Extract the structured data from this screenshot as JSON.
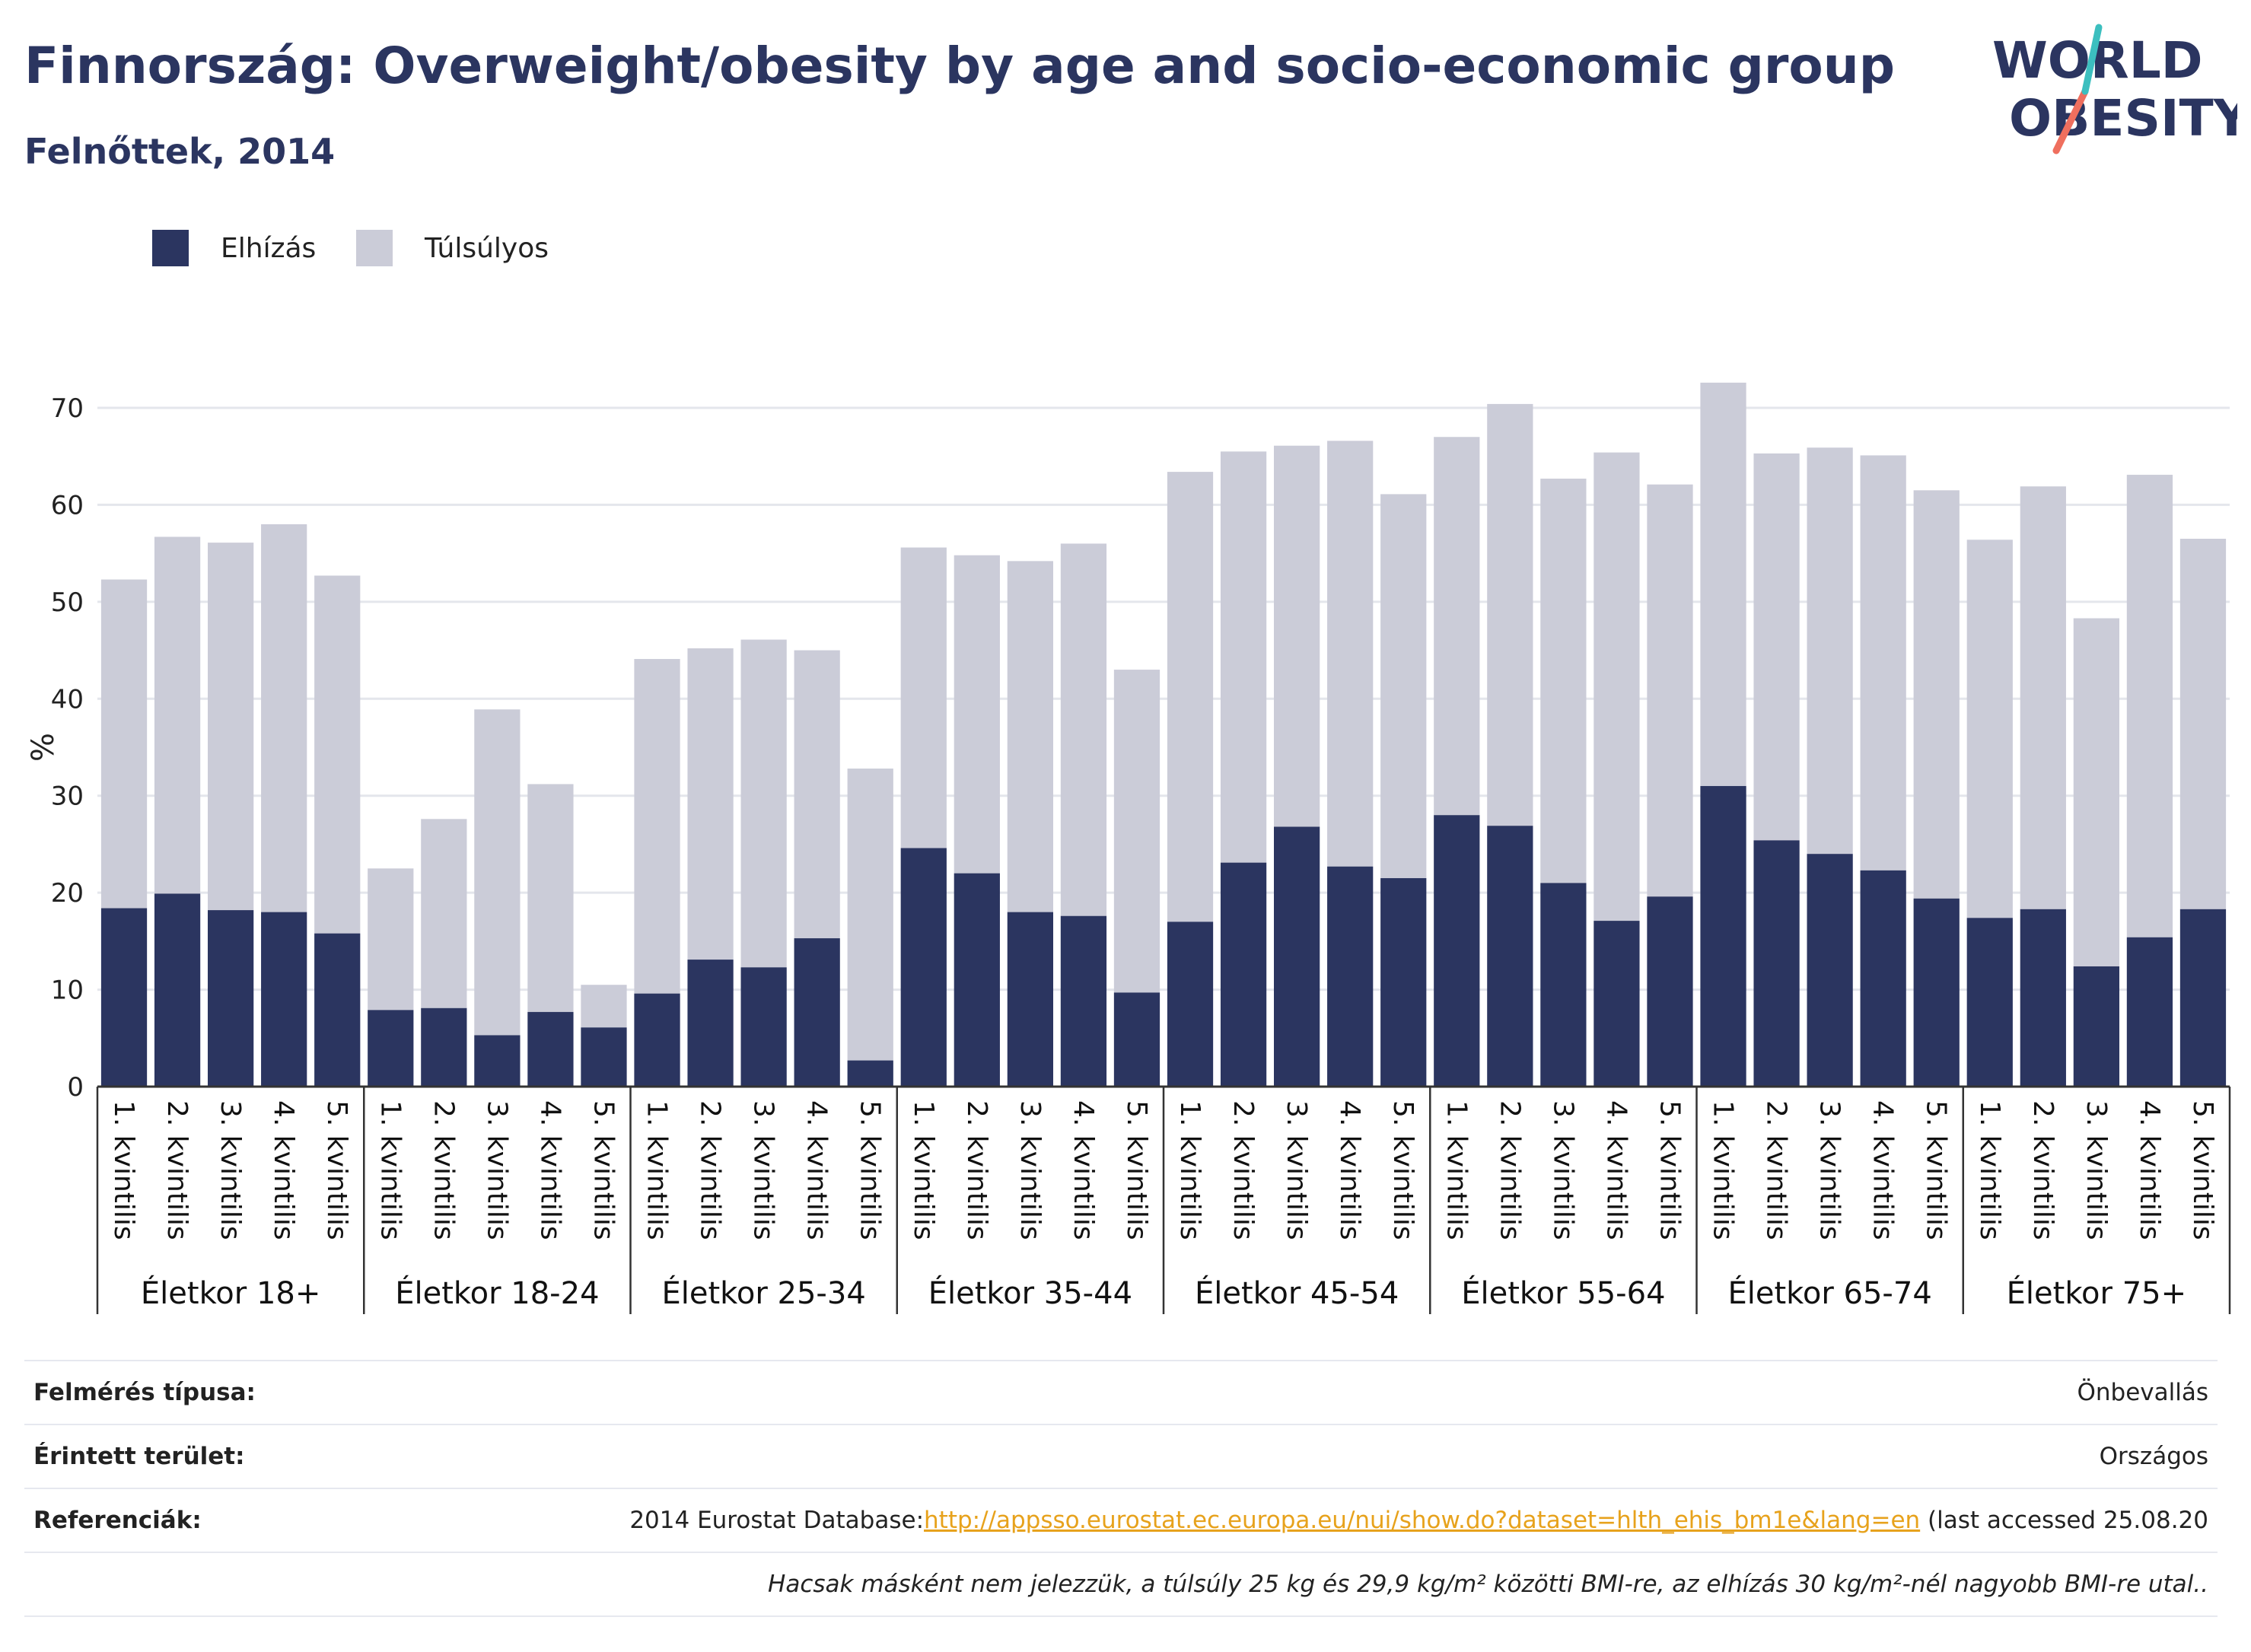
{
  "header": {
    "title": "Finnország: Overweight/obesity by age and socio-economic group",
    "subtitle": "Felnőttek, 2014"
  },
  "logo": {
    "line1": "WORLD",
    "line2": "OBESITY",
    "colors": {
      "text": "#2b3560",
      "slash_teal": "#3cbfbf",
      "slash_coral": "#ef6f5e"
    }
  },
  "colors": {
    "obesity": "#2b3560",
    "overweight": "#cbccd8",
    "grid": "#e4e6ec",
    "axis": "#333333"
  },
  "chart_data": {
    "type": "bar",
    "stacked": true,
    "ylabel": "%",
    "ylim": [
      0,
      72.5
    ],
    "yticks": [
      0,
      10,
      20,
      30,
      40,
      50,
      60,
      70
    ],
    "grid": true,
    "legend_position": "top-left",
    "series": [
      {
        "name": "Elhízás",
        "key": "obesity"
      },
      {
        "name": "Túlsúlyos",
        "key": "overweight"
      }
    ],
    "groups": [
      {
        "label": "Életkor 18+",
        "bars": [
          {
            "category": "1. kvintilis",
            "obesity": 18.4,
            "total": 52.3
          },
          {
            "category": "2. kvintilis",
            "obesity": 19.9,
            "total": 56.7
          },
          {
            "category": "3. kvintilis",
            "obesity": 18.2,
            "total": 56.1
          },
          {
            "category": "4. kvintilis",
            "obesity": 18.0,
            "total": 58.0
          },
          {
            "category": "5. kvintilis",
            "obesity": 15.8,
            "total": 52.7
          }
        ]
      },
      {
        "label": "Életkor 18-24",
        "bars": [
          {
            "category": "1. kvintilis",
            "obesity": 7.9,
            "total": 22.5
          },
          {
            "category": "2. kvintilis",
            "obesity": 8.1,
            "total": 27.6
          },
          {
            "category": "3. kvintilis",
            "obesity": 5.3,
            "total": 38.9
          },
          {
            "category": "4. kvintilis",
            "obesity": 7.7,
            "total": 31.2
          },
          {
            "category": "5. kvintilis",
            "obesity": 6.1,
            "total": 10.5
          }
        ]
      },
      {
        "label": "Életkor 25-34",
        "bars": [
          {
            "category": "1. kvintilis",
            "obesity": 9.6,
            "total": 44.1
          },
          {
            "category": "2. kvintilis",
            "obesity": 13.1,
            "total": 45.2
          },
          {
            "category": "3. kvintilis",
            "obesity": 12.3,
            "total": 46.1
          },
          {
            "category": "4. kvintilis",
            "obesity": 15.3,
            "total": 45.0
          },
          {
            "category": "5. kvintilis",
            "obesity": 2.7,
            "total": 32.8
          }
        ]
      },
      {
        "label": "Életkor 35-44",
        "bars": [
          {
            "category": "1. kvintilis",
            "obesity": 24.6,
            "total": 55.6
          },
          {
            "category": "2. kvintilis",
            "obesity": 22.0,
            "total": 54.8
          },
          {
            "category": "3. kvintilis",
            "obesity": 18.0,
            "total": 54.2
          },
          {
            "category": "4. kvintilis",
            "obesity": 17.6,
            "total": 56.0
          },
          {
            "category": "5. kvintilis",
            "obesity": 9.7,
            "total": 43.0
          }
        ]
      },
      {
        "label": "Életkor 45-54",
        "bars": [
          {
            "category": "1. kvintilis",
            "obesity": 17.0,
            "total": 63.4
          },
          {
            "category": "2. kvintilis",
            "obesity": 23.1,
            "total": 65.5
          },
          {
            "category": "3. kvintilis",
            "obesity": 26.8,
            "total": 66.1
          },
          {
            "category": "4. kvintilis",
            "obesity": 22.7,
            "total": 66.6
          },
          {
            "category": "5. kvintilis",
            "obesity": 21.5,
            "total": 61.1
          }
        ]
      },
      {
        "label": "Életkor 55-64",
        "bars": [
          {
            "category": "1. kvintilis",
            "obesity": 28.0,
            "total": 67.0
          },
          {
            "category": "2. kvintilis",
            "obesity": 26.9,
            "total": 70.4
          },
          {
            "category": "3. kvintilis",
            "obesity": 21.0,
            "total": 62.7
          },
          {
            "category": "4. kvintilis",
            "obesity": 17.1,
            "total": 65.4
          },
          {
            "category": "5. kvintilis",
            "obesity": 19.6,
            "total": 62.1
          }
        ]
      },
      {
        "label": "Életkor 65-74",
        "bars": [
          {
            "category": "1. kvintilis",
            "obesity": 31.0,
            "total": 72.6
          },
          {
            "category": "2. kvintilis",
            "obesity": 25.4,
            "total": 65.3
          },
          {
            "category": "3. kvintilis",
            "obesity": 24.0,
            "total": 65.9
          },
          {
            "category": "4. kvintilis",
            "obesity": 22.3,
            "total": 65.1
          },
          {
            "category": "5. kvintilis",
            "obesity": 19.4,
            "total": 61.5
          }
        ]
      },
      {
        "label": "Életkor 75+",
        "bars": [
          {
            "category": "1. kvintilis",
            "obesity": 17.4,
            "total": 56.4
          },
          {
            "category": "2. kvintilis",
            "obesity": 18.3,
            "total": 61.9
          },
          {
            "category": "3. kvintilis",
            "obesity": 12.4,
            "total": 48.3
          },
          {
            "category": "4. kvintilis",
            "obesity": 15.4,
            "total": 63.1
          },
          {
            "category": "5. kvintilis",
            "obesity": 18.3,
            "total": 56.5
          }
        ]
      }
    ]
  },
  "info": {
    "survey_type": {
      "label": "Felmérés típusa:",
      "value": "Önbevallás"
    },
    "area": {
      "label": "Érintett terület:",
      "value": "Országos"
    },
    "references": {
      "label": "Referenciák:",
      "prefix": "2014 Eurostat Database:",
      "link": "http://appsso.eurostat.ec.europa.eu/nui/show.do?dataset=hlth_ehis_bm1e&lang=en",
      "suffix": " (last accessed 25.08.20"
    },
    "note": "Hacsak másként nem jelezzük, a túlsúly 25 kg és 29,9 kg/m² közötti BMI-re, az elhízás 30 kg/m²-nél nagyobb BMI-re utal.."
  }
}
